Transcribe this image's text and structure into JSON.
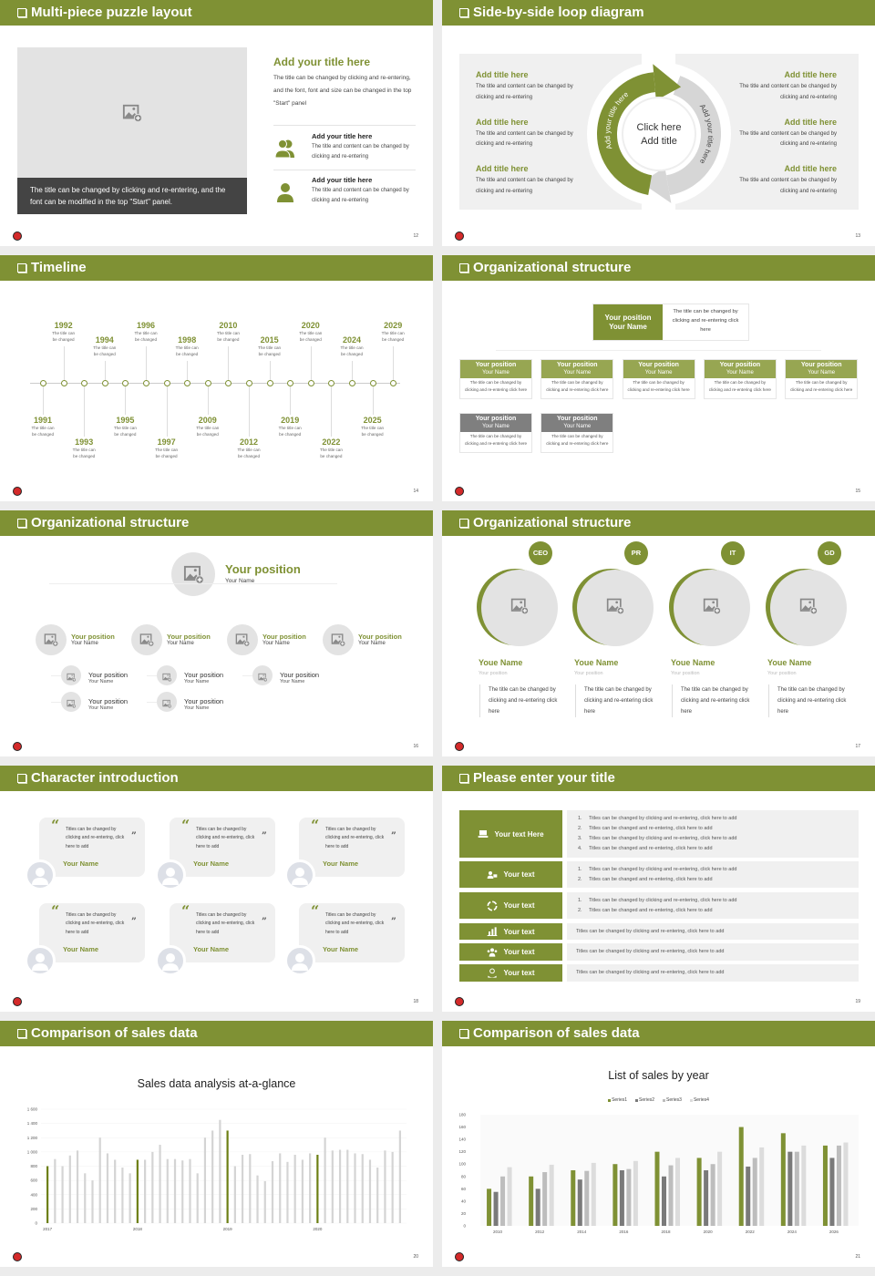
{
  "theme": {
    "accent": "#7f9134",
    "dark_series": "#7a7a7a",
    "light_series": "#c8c8c8",
    "lighter_series": "#dcdcdc",
    "logo_red": "#d42a2a"
  },
  "slides": [
    {
      "title": "Multi-piece puzzle layout",
      "page": "12"
    },
    {
      "title": "Side-by-side loop diagram",
      "page": "13"
    },
    {
      "title": "Timeline",
      "page": "14"
    },
    {
      "title": "Organizational structure",
      "page": "15"
    },
    {
      "title": "Organizational structure",
      "page": "16"
    },
    {
      "title": "Organizational structure",
      "page": "17"
    },
    {
      "title": "Character introduction",
      "page": "18"
    },
    {
      "title": "Please enter your title",
      "page": "19"
    },
    {
      "title": "Comparison of sales data",
      "page": "20"
    },
    {
      "title": "Comparison of sales data",
      "page": "21"
    }
  ],
  "puzzle": {
    "image_caption": "The title can be changed by clicking and re-entering, and the font can be modified in the top \"Start\" panel.",
    "title": "Add your title here",
    "body": "The title can be changed by clicking and re-entering, and the font, font and size can be changed in the top \"Start\" panel",
    "items": [
      {
        "icon": "users-icon",
        "title": "Add your title here",
        "body": "The title and content can be changed by clicking and re-entering"
      },
      {
        "icon": "user-icon",
        "title": "Add your title here",
        "body": "The title and content can be changed by clicking and re-entering"
      }
    ]
  },
  "loop": {
    "left": [
      {
        "title": "Add title here",
        "body": "The title and content can be changed by clicking and re-entering"
      },
      {
        "title": "Add title here",
        "body": "The title and content can be changed by clicking and re-entering"
      },
      {
        "title": "Add title here",
        "body": "The title and content can be changed by clicking and re-entering"
      }
    ],
    "right": [
      {
        "title": "Add title here",
        "body": "The title and content can be changed by clicking and re-entering"
      },
      {
        "title": "Add title here",
        "body": "The title and content can be changed by clicking and re-entering"
      },
      {
        "title": "Add title here",
        "body": "The title and content can be changed by clicking and re-entering"
      }
    ],
    "center_line1": "Click here",
    "center_line2": "Add title",
    "arc_left": "Add your title here",
    "arc_right": "Add your title here"
  },
  "timeline": {
    "top": [
      {
        "year": "1992",
        "text": "The title can be changed"
      },
      {
        "year": "1994",
        "text": "The title can be changed"
      },
      {
        "year": "1996",
        "text": "The title can be changed"
      },
      {
        "year": "1998",
        "text": "The title can be changed"
      },
      {
        "year": "2010",
        "text": "The title can be changed"
      },
      {
        "year": "2015",
        "text": "The title can be changed"
      },
      {
        "year": "2020",
        "text": "The title can be changed"
      },
      {
        "year": "2024",
        "text": "The title can be changed"
      },
      {
        "year": "2029",
        "text": "The title can be changed"
      }
    ],
    "bottom": [
      {
        "year": "1991",
        "text": "The title can be changed"
      },
      {
        "year": "1993",
        "text": "The title can be changed"
      },
      {
        "year": "1995",
        "text": "The title can be changed"
      },
      {
        "year": "1997",
        "text": "The title can be changed"
      },
      {
        "year": "2009",
        "text": "The title can be changed"
      },
      {
        "year": "2012",
        "text": "The title can be changed"
      },
      {
        "year": "2019",
        "text": "The title can be changed"
      },
      {
        "year": "2022",
        "text": "The title can be changed"
      },
      {
        "year": "2025",
        "text": "The title can be changed"
      }
    ]
  },
  "org15": {
    "head": {
      "position": "Your position",
      "name": "Your Name",
      "desc": "The title can be changed by clicking and re-entering click here"
    },
    "row1": [
      {
        "position": "Your position",
        "name": "Your Name",
        "desc": "The title can be changed by clicking and re-entering click here"
      },
      {
        "position": "Your position",
        "name": "Your Name",
        "desc": "The title can be changed by clicking and re-entering click here"
      },
      {
        "position": "Your position",
        "name": "Your Name",
        "desc": "The title can be changed by clicking and re-entering click here"
      },
      {
        "position": "Your position",
        "name": "Your Name",
        "desc": "The title can be changed by clicking and re-entering click here"
      },
      {
        "position": "Your position",
        "name": "Your Name",
        "desc": "The title can be changed by clicking and re-entering click here"
      }
    ],
    "row2": [
      {
        "position": "Your position",
        "name": "Your Name",
        "desc": "The title can be changed by clicking and re-entering click here"
      },
      {
        "position": "Your position",
        "name": "Your Name",
        "desc": "The title can be changed by clicking and re-entering click here"
      }
    ]
  },
  "org16": {
    "head": {
      "position": "Your position",
      "name": "Your Name"
    },
    "branches": [
      {
        "position": "Your position",
        "name": "Your Name",
        "children": [
          {
            "position": "Your position",
            "name": "Your Name"
          },
          {
            "position": "Your position",
            "name": "Your Name"
          }
        ]
      },
      {
        "position": "Your position",
        "name": "Your Name",
        "children": [
          {
            "position": "Your position",
            "name": "Your Name"
          },
          {
            "position": "Your position",
            "name": "Your Name"
          }
        ]
      },
      {
        "position": "Your position",
        "name": "Your Name",
        "children": [
          {
            "position": "Your position",
            "name": "Your Name"
          }
        ]
      },
      {
        "position": "Your position",
        "name": "Your Name",
        "children": []
      }
    ]
  },
  "team": [
    {
      "badge": "CEO",
      "name": "Youe Name",
      "position": "Your position",
      "desc": "The title can be changed by clicking and re-entering click here"
    },
    {
      "badge": "PR",
      "name": "Youe Name",
      "position": "Your position",
      "desc": "The title can be changed by clicking and re-entering click here"
    },
    {
      "badge": "IT",
      "name": "Youe Name",
      "position": "Your position",
      "desc": "The title can be changed by clicking and re-entering click here"
    },
    {
      "badge": "GD",
      "name": "Youe Name",
      "position": "Your position",
      "desc": "The title can be changed by clicking and re-entering click here"
    }
  ],
  "quotes": [
    {
      "text": "Titles can be changed by clicking and re-entering, click here to add",
      "name": "Your Name"
    },
    {
      "text": "Titles can be changed by clicking and re-entering, click here to add",
      "name": "Your Name"
    },
    {
      "text": "Titles can be changed by clicking and re-entering, click here to add",
      "name": "Your Name"
    },
    {
      "text": "Titles can be changed by clicking and re-entering, click here to add",
      "name": "Your Name"
    },
    {
      "text": "Titles can be changed by clicking and re-entering, click here to add",
      "name": "Your Name"
    },
    {
      "text": "Titles can be changed by clicking and re-entering, click here to add",
      "name": "Your Name"
    }
  ],
  "list_rows": [
    {
      "icon": "presentation-icon",
      "label": "Your text Here",
      "items": [
        "Titles can be changed by clicking and re-entering, click here to add",
        "Titles can be changed and re-entering, click here to add",
        "Titles can be changed by clicking and re-entering, click here to add",
        "Titles can be changed and re-entering, click here to add"
      ]
    },
    {
      "icon": "user-card-icon",
      "label": "Your text",
      "items": [
        "Titles can be changed by clicking and re-entering, click here to add",
        "Titles can be changed and re-entering, click here to add"
      ]
    },
    {
      "icon": "badge-icon",
      "label": "Your text",
      "items": [
        "Titles can be changed by clicking and re-entering, click here to add",
        "Titles can be changed and re-entering, click here to add"
      ]
    },
    {
      "icon": "bar-chart-icon",
      "label": "Your text",
      "text": "Titles can be changed by clicking and re-entering, click here to add"
    },
    {
      "icon": "team-icon",
      "label": "Your text",
      "text": "Titles can be changed by clicking and re-entering, click here to add"
    },
    {
      "icon": "hand-user-icon",
      "label": "Your text",
      "text": "Titles can be changed by clicking and re-entering, click here to add"
    }
  ],
  "chart_data": [
    {
      "type": "bar",
      "title": "Sales data analysis at-a-glance",
      "ylim": [
        0,
        1600
      ],
      "yticks": [
        "0",
        "200",
        "400",
        "600",
        "800",
        "1 000",
        "1 200",
        "1 400",
        "1 600"
      ],
      "xtick_labels": [
        {
          "index": 0,
          "label": "2017"
        },
        {
          "index": 12,
          "label": "2018"
        },
        {
          "index": 24,
          "label": "2019"
        },
        {
          "index": 36,
          "label": "2020"
        }
      ],
      "highlight_indices": [
        0,
        12,
        24,
        36
      ],
      "values": [
        800,
        900,
        800,
        950,
        1020,
        700,
        600,
        1200,
        980,
        890,
        780,
        700,
        890,
        890,
        1000,
        1100,
        900,
        900,
        880,
        900,
        700,
        1200,
        1300,
        1450,
        1300,
        800,
        960,
        970,
        670,
        590,
        870,
        980,
        860,
        960,
        890,
        980,
        960,
        1200,
        1020,
        1030,
        1030,
        980,
        970,
        890,
        780,
        1020,
        1000,
        1300
      ],
      "grid": true
    },
    {
      "type": "bar",
      "title": "List of sales by year",
      "legend": "top",
      "categories": [
        "2010",
        "2012",
        "2014",
        "2016",
        "2018",
        "2020",
        "2022",
        "2024",
        "2026"
      ],
      "ylim": [
        0,
        180
      ],
      "yticks": [
        "0",
        "20",
        "40",
        "60",
        "80",
        "100",
        "120",
        "140",
        "160",
        "180"
      ],
      "series": [
        {
          "name": "Series1",
          "color": "#7f9134",
          "values": [
            60,
            80,
            90,
            100,
            120,
            110,
            160,
            150,
            130
          ]
        },
        {
          "name": "Series2",
          "color": "#7a7a7a",
          "values": [
            55,
            60,
            75,
            90,
            80,
            90,
            96,
            120,
            110
          ]
        },
        {
          "name": "Series3",
          "color": "#bdbdbd",
          "values": [
            80,
            87,
            89,
            92,
            98,
            100,
            110,
            120,
            130
          ]
        },
        {
          "name": "Series4",
          "color": "#dcdcdc",
          "values": [
            95,
            99,
            102,
            105,
            110,
            120,
            127,
            130,
            135
          ]
        }
      ]
    }
  ]
}
